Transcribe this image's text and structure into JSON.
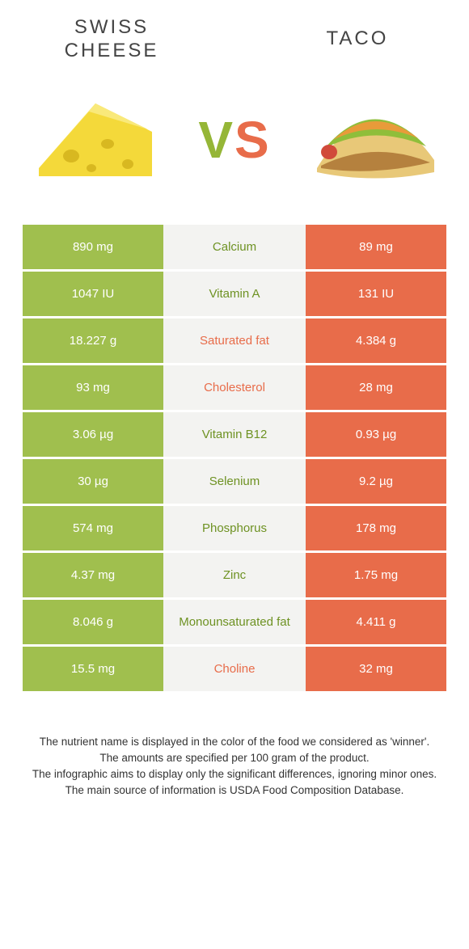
{
  "header": {
    "left_title": "SWISS CHEESE",
    "right_title": "TACO",
    "vs_v": "V",
    "vs_s": "S"
  },
  "colors": {
    "green": "#a0bf4e",
    "green_text": "#6e9223",
    "orange": "#e86c4a",
    "mid_bg": "#f3f3f1"
  },
  "rows": [
    {
      "left": "890 mg",
      "nutrient": "Calcium",
      "right": "89 mg",
      "winner": "left"
    },
    {
      "left": "1047 IU",
      "nutrient": "Vitamin A",
      "right": "131 IU",
      "winner": "left"
    },
    {
      "left": "18.227 g",
      "nutrient": "Saturated fat",
      "right": "4.384 g",
      "winner": "right"
    },
    {
      "left": "93 mg",
      "nutrient": "Cholesterol",
      "right": "28 mg",
      "winner": "right"
    },
    {
      "left": "3.06 µg",
      "nutrient": "Vitamin B12",
      "right": "0.93 µg",
      "winner": "left"
    },
    {
      "left": "30 µg",
      "nutrient": "Selenium",
      "right": "9.2 µg",
      "winner": "left"
    },
    {
      "left": "574 mg",
      "nutrient": "Phosphorus",
      "right": "178 mg",
      "winner": "left"
    },
    {
      "left": "4.37 mg",
      "nutrient": "Zinc",
      "right": "1.75 mg",
      "winner": "left"
    },
    {
      "left": "8.046 g",
      "nutrient": "Monounsaturated fat",
      "right": "4.411 g",
      "winner": "left"
    },
    {
      "left": "15.5 mg",
      "nutrient": "Choline",
      "right": "32 mg",
      "winner": "right"
    }
  ],
  "footer": {
    "line1": "The nutrient name is displayed in the color of the food we considered as 'winner'.",
    "line2": "The amounts are specified per 100 gram of the product.",
    "line3": "The infographic aims to display only the significant differences, ignoring minor ones.",
    "line4": "The main source of information is USDA Food Composition Database."
  }
}
